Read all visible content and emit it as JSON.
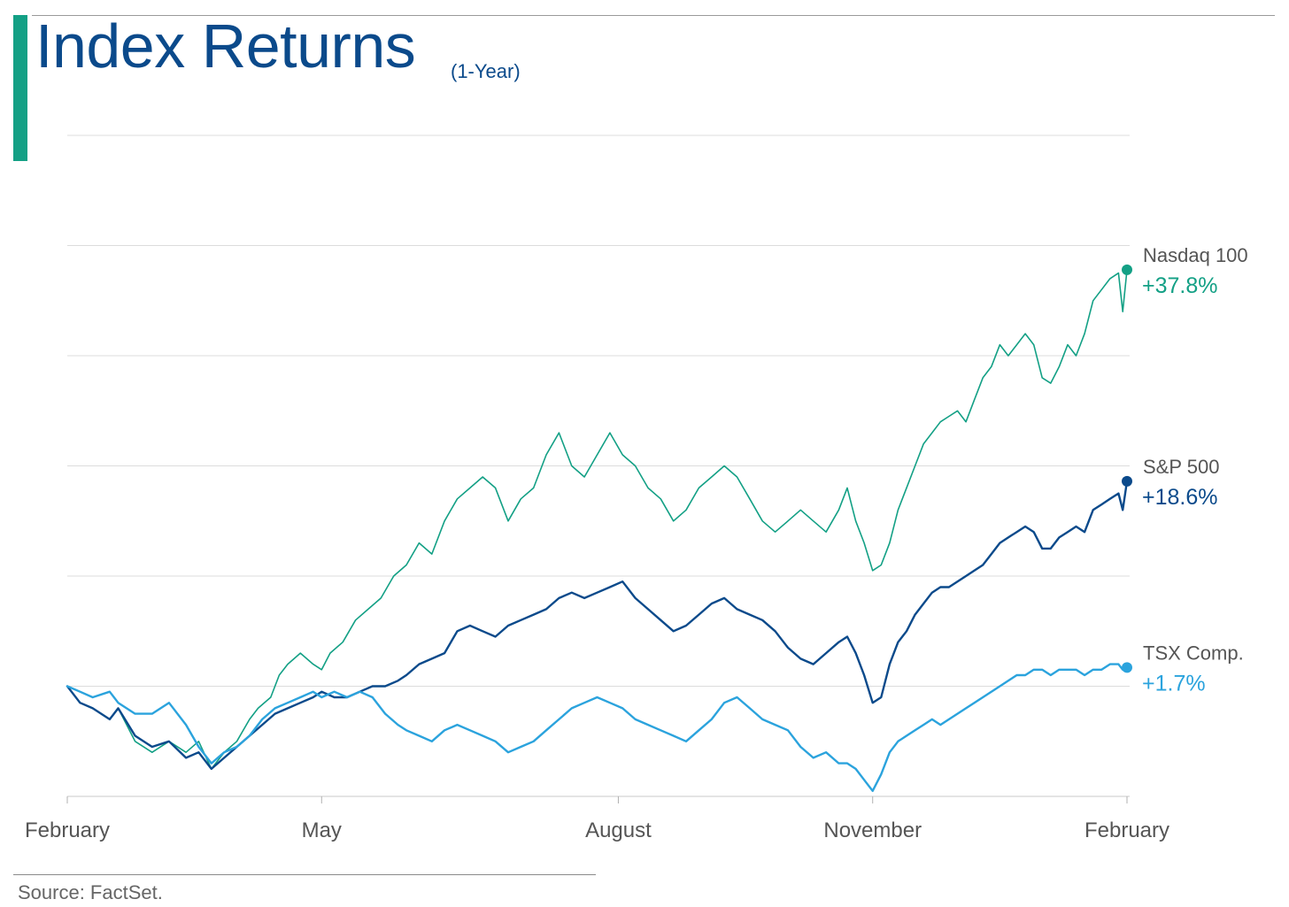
{
  "header": {
    "title": "Index Returns",
    "subtitle": "(1-Year)",
    "title_color": "#0b4a8b",
    "accent_color": "#13a085"
  },
  "footer": {
    "source": "Source: FactSet."
  },
  "chart_data": {
    "type": "line",
    "title": "Index Returns",
    "subtitle": "(1-Year)",
    "xlabel": "",
    "ylabel": "",
    "x_tick_labels": [
      "February",
      "May",
      "August",
      "November",
      "February"
    ],
    "x_tick_positions": [
      0,
      3,
      6.5,
      9.5,
      12.5
    ],
    "x_range": [
      0,
      12.5
    ],
    "ylim": [
      -10,
      50
    ],
    "y_gridlines": [
      -10,
      0,
      10,
      20,
      30,
      40,
      50
    ],
    "grid": true,
    "legend": "end-labels-right",
    "series": [
      {
        "name": "Nasdaq 100",
        "end_label": "+37.8%",
        "color": "#13a085",
        "line_width": 1.6,
        "points": [
          [
            0,
            0
          ],
          [
            0.15,
            -1.5
          ],
          [
            0.3,
            -2
          ],
          [
            0.5,
            -3
          ],
          [
            0.6,
            -2
          ],
          [
            0.8,
            -5
          ],
          [
            1,
            -6
          ],
          [
            1.2,
            -5
          ],
          [
            1.4,
            -6
          ],
          [
            1.55,
            -5
          ],
          [
            1.7,
            -7.5
          ],
          [
            1.85,
            -6
          ],
          [
            2,
            -5
          ],
          [
            2.15,
            -3
          ],
          [
            2.25,
            -2
          ],
          [
            2.4,
            -1
          ],
          [
            2.5,
            1
          ],
          [
            2.6,
            2
          ],
          [
            2.75,
            3
          ],
          [
            2.9,
            2
          ],
          [
            3,
            1.5
          ],
          [
            3.1,
            3
          ],
          [
            3.25,
            4
          ],
          [
            3.4,
            6
          ],
          [
            3.55,
            7
          ],
          [
            3.7,
            8
          ],
          [
            3.85,
            10
          ],
          [
            4,
            11
          ],
          [
            4.15,
            13
          ],
          [
            4.3,
            12
          ],
          [
            4.45,
            15
          ],
          [
            4.6,
            17
          ],
          [
            4.75,
            18
          ],
          [
            4.9,
            19
          ],
          [
            5.05,
            18
          ],
          [
            5.2,
            15
          ],
          [
            5.35,
            17
          ],
          [
            5.5,
            18
          ],
          [
            5.65,
            21
          ],
          [
            5.8,
            23
          ],
          [
            5.95,
            20
          ],
          [
            6.1,
            19
          ],
          [
            6.25,
            21
          ],
          [
            6.4,
            23
          ],
          [
            6.55,
            21
          ],
          [
            6.7,
            20
          ],
          [
            6.85,
            18
          ],
          [
            7,
            17
          ],
          [
            7.15,
            15
          ],
          [
            7.3,
            16
          ],
          [
            7.45,
            18
          ],
          [
            7.6,
            19
          ],
          [
            7.75,
            20
          ],
          [
            7.9,
            19
          ],
          [
            8.05,
            17
          ],
          [
            8.2,
            15
          ],
          [
            8.35,
            14
          ],
          [
            8.5,
            15
          ],
          [
            8.65,
            16
          ],
          [
            8.8,
            15
          ],
          [
            8.95,
            14
          ],
          [
            9.1,
            16
          ],
          [
            9.2,
            18
          ],
          [
            9.3,
            15
          ],
          [
            9.4,
            13
          ],
          [
            9.5,
            10.5
          ],
          [
            9.6,
            11
          ],
          [
            9.7,
            13
          ],
          [
            9.8,
            16
          ],
          [
            9.9,
            18
          ],
          [
            10,
            20
          ],
          [
            10.1,
            22
          ],
          [
            10.2,
            23
          ],
          [
            10.3,
            24
          ],
          [
            10.4,
            24.5
          ],
          [
            10.5,
            25
          ],
          [
            10.6,
            24
          ],
          [
            10.7,
            26
          ],
          [
            10.8,
            28
          ],
          [
            10.9,
            29
          ],
          [
            11,
            31
          ],
          [
            11.1,
            30
          ],
          [
            11.2,
            31
          ],
          [
            11.3,
            32
          ],
          [
            11.4,
            31
          ],
          [
            11.5,
            28
          ],
          [
            11.6,
            27.5
          ],
          [
            11.7,
            29
          ],
          [
            11.8,
            31
          ],
          [
            11.9,
            30
          ],
          [
            12,
            32
          ],
          [
            12.1,
            35
          ],
          [
            12.2,
            36
          ],
          [
            12.3,
            37
          ],
          [
            12.4,
            37.5
          ],
          [
            12.45,
            34
          ],
          [
            12.5,
            37.8
          ]
        ]
      },
      {
        "name": "S&P 500",
        "end_label": "+18.6%",
        "color": "#0b4a8b",
        "line_width": 2.4,
        "points": [
          [
            0,
            0
          ],
          [
            0.15,
            -1.5
          ],
          [
            0.3,
            -2
          ],
          [
            0.5,
            -3
          ],
          [
            0.6,
            -2
          ],
          [
            0.8,
            -4.5
          ],
          [
            1,
            -5.5
          ],
          [
            1.2,
            -5
          ],
          [
            1.4,
            -6.5
          ],
          [
            1.55,
            -6
          ],
          [
            1.7,
            -7.5
          ],
          [
            1.85,
            -6.5
          ],
          [
            2,
            -5.5
          ],
          [
            2.15,
            -4.5
          ],
          [
            2.3,
            -3.5
          ],
          [
            2.45,
            -2.5
          ],
          [
            2.6,
            -2
          ],
          [
            2.75,
            -1.5
          ],
          [
            2.9,
            -1
          ],
          [
            3,
            -0.5
          ],
          [
            3.15,
            -1
          ],
          [
            3.3,
            -1
          ],
          [
            3.45,
            -0.5
          ],
          [
            3.6,
            0
          ],
          [
            3.75,
            0
          ],
          [
            3.9,
            0.5
          ],
          [
            4,
            1
          ],
          [
            4.15,
            2
          ],
          [
            4.3,
            2.5
          ],
          [
            4.45,
            3
          ],
          [
            4.6,
            5
          ],
          [
            4.75,
            5.5
          ],
          [
            4.9,
            5
          ],
          [
            5.05,
            4.5
          ],
          [
            5.2,
            5.5
          ],
          [
            5.35,
            6
          ],
          [
            5.5,
            6.5
          ],
          [
            5.65,
            7
          ],
          [
            5.8,
            8
          ],
          [
            5.95,
            8.5
          ],
          [
            6.1,
            8
          ],
          [
            6.25,
            8.5
          ],
          [
            6.4,
            9
          ],
          [
            6.55,
            9.5
          ],
          [
            6.7,
            8
          ],
          [
            6.85,
            7
          ],
          [
            7,
            6
          ],
          [
            7.15,
            5
          ],
          [
            7.3,
            5.5
          ],
          [
            7.45,
            6.5
          ],
          [
            7.6,
            7.5
          ],
          [
            7.75,
            8
          ],
          [
            7.9,
            7
          ],
          [
            8.05,
            6.5
          ],
          [
            8.2,
            6
          ],
          [
            8.35,
            5
          ],
          [
            8.5,
            3.5
          ],
          [
            8.65,
            2.5
          ],
          [
            8.8,
            2
          ],
          [
            8.95,
            3
          ],
          [
            9.1,
            4
          ],
          [
            9.2,
            4.5
          ],
          [
            9.3,
            3
          ],
          [
            9.4,
            1
          ],
          [
            9.5,
            -1.5
          ],
          [
            9.6,
            -1
          ],
          [
            9.7,
            2
          ],
          [
            9.8,
            4
          ],
          [
            9.9,
            5
          ],
          [
            10,
            6.5
          ],
          [
            10.1,
            7.5
          ],
          [
            10.2,
            8.5
          ],
          [
            10.3,
            9
          ],
          [
            10.4,
            9
          ],
          [
            10.5,
            9.5
          ],
          [
            10.6,
            10
          ],
          [
            10.7,
            10.5
          ],
          [
            10.8,
            11
          ],
          [
            10.9,
            12
          ],
          [
            11,
            13
          ],
          [
            11.1,
            13.5
          ],
          [
            11.2,
            14
          ],
          [
            11.3,
            14.5
          ],
          [
            11.4,
            14
          ],
          [
            11.5,
            12.5
          ],
          [
            11.6,
            12.5
          ],
          [
            11.7,
            13.5
          ],
          [
            11.8,
            14
          ],
          [
            11.9,
            14.5
          ],
          [
            12,
            14
          ],
          [
            12.1,
            16
          ],
          [
            12.2,
            16.5
          ],
          [
            12.3,
            17
          ],
          [
            12.4,
            17.5
          ],
          [
            12.45,
            16
          ],
          [
            12.5,
            18.6
          ]
        ]
      },
      {
        "name": "TSX Comp.",
        "end_label": "+1.7%",
        "color": "#2ba3dd",
        "line_width": 2.4,
        "points": [
          [
            0,
            0
          ],
          [
            0.15,
            -0.5
          ],
          [
            0.3,
            -1
          ],
          [
            0.5,
            -0.5
          ],
          [
            0.6,
            -1.5
          ],
          [
            0.8,
            -2.5
          ],
          [
            1,
            -2.5
          ],
          [
            1.2,
            -1.5
          ],
          [
            1.4,
            -3.5
          ],
          [
            1.55,
            -5.5
          ],
          [
            1.7,
            -7
          ],
          [
            1.85,
            -6
          ],
          [
            2,
            -5.5
          ],
          [
            2.15,
            -4.5
          ],
          [
            2.3,
            -3
          ],
          [
            2.45,
            -2
          ],
          [
            2.6,
            -1.5
          ],
          [
            2.75,
            -1
          ],
          [
            2.9,
            -0.5
          ],
          [
            3,
            -1
          ],
          [
            3.15,
            -0.5
          ],
          [
            3.3,
            -1
          ],
          [
            3.45,
            -0.5
          ],
          [
            3.6,
            -1
          ],
          [
            3.75,
            -2.5
          ],
          [
            3.9,
            -3.5
          ],
          [
            4,
            -4
          ],
          [
            4.15,
            -4.5
          ],
          [
            4.3,
            -5
          ],
          [
            4.45,
            -4
          ],
          [
            4.6,
            -3.5
          ],
          [
            4.75,
            -4
          ],
          [
            4.9,
            -4.5
          ],
          [
            5.05,
            -5
          ],
          [
            5.2,
            -6
          ],
          [
            5.35,
            -5.5
          ],
          [
            5.5,
            -5
          ],
          [
            5.65,
            -4
          ],
          [
            5.8,
            -3
          ],
          [
            5.95,
            -2
          ],
          [
            6.1,
            -1.5
          ],
          [
            6.25,
            -1
          ],
          [
            6.4,
            -1.5
          ],
          [
            6.55,
            -2
          ],
          [
            6.7,
            -3
          ],
          [
            6.85,
            -3.5
          ],
          [
            7,
            -4
          ],
          [
            7.15,
            -4.5
          ],
          [
            7.3,
            -5
          ],
          [
            7.45,
            -4
          ],
          [
            7.6,
            -3
          ],
          [
            7.75,
            -1.5
          ],
          [
            7.9,
            -1
          ],
          [
            8.05,
            -2
          ],
          [
            8.2,
            -3
          ],
          [
            8.35,
            -3.5
          ],
          [
            8.5,
            -4
          ],
          [
            8.65,
            -5.5
          ],
          [
            8.8,
            -6.5
          ],
          [
            8.95,
            -6
          ],
          [
            9.1,
            -7
          ],
          [
            9.2,
            -7
          ],
          [
            9.3,
            -7.5
          ],
          [
            9.4,
            -8.5
          ],
          [
            9.5,
            -9.5
          ],
          [
            9.6,
            -8
          ],
          [
            9.7,
            -6
          ],
          [
            9.8,
            -5
          ],
          [
            9.9,
            -4.5
          ],
          [
            10,
            -4
          ],
          [
            10.1,
            -3.5
          ],
          [
            10.2,
            -3
          ],
          [
            10.3,
            -3.5
          ],
          [
            10.4,
            -3
          ],
          [
            10.5,
            -2.5
          ],
          [
            10.6,
            -2
          ],
          [
            10.7,
            -1.5
          ],
          [
            10.8,
            -1
          ],
          [
            10.9,
            -0.5
          ],
          [
            11,
            0
          ],
          [
            11.1,
            0.5
          ],
          [
            11.2,
            1
          ],
          [
            11.3,
            1
          ],
          [
            11.4,
            1.5
          ],
          [
            11.5,
            1.5
          ],
          [
            11.6,
            1
          ],
          [
            11.7,
            1.5
          ],
          [
            11.8,
            1.5
          ],
          [
            11.9,
            1.5
          ],
          [
            12,
            1
          ],
          [
            12.1,
            1.5
          ],
          [
            12.2,
            1.5
          ],
          [
            12.3,
            2
          ],
          [
            12.4,
            2
          ],
          [
            12.45,
            1.5
          ],
          [
            12.5,
            1.7
          ]
        ]
      }
    ]
  }
}
